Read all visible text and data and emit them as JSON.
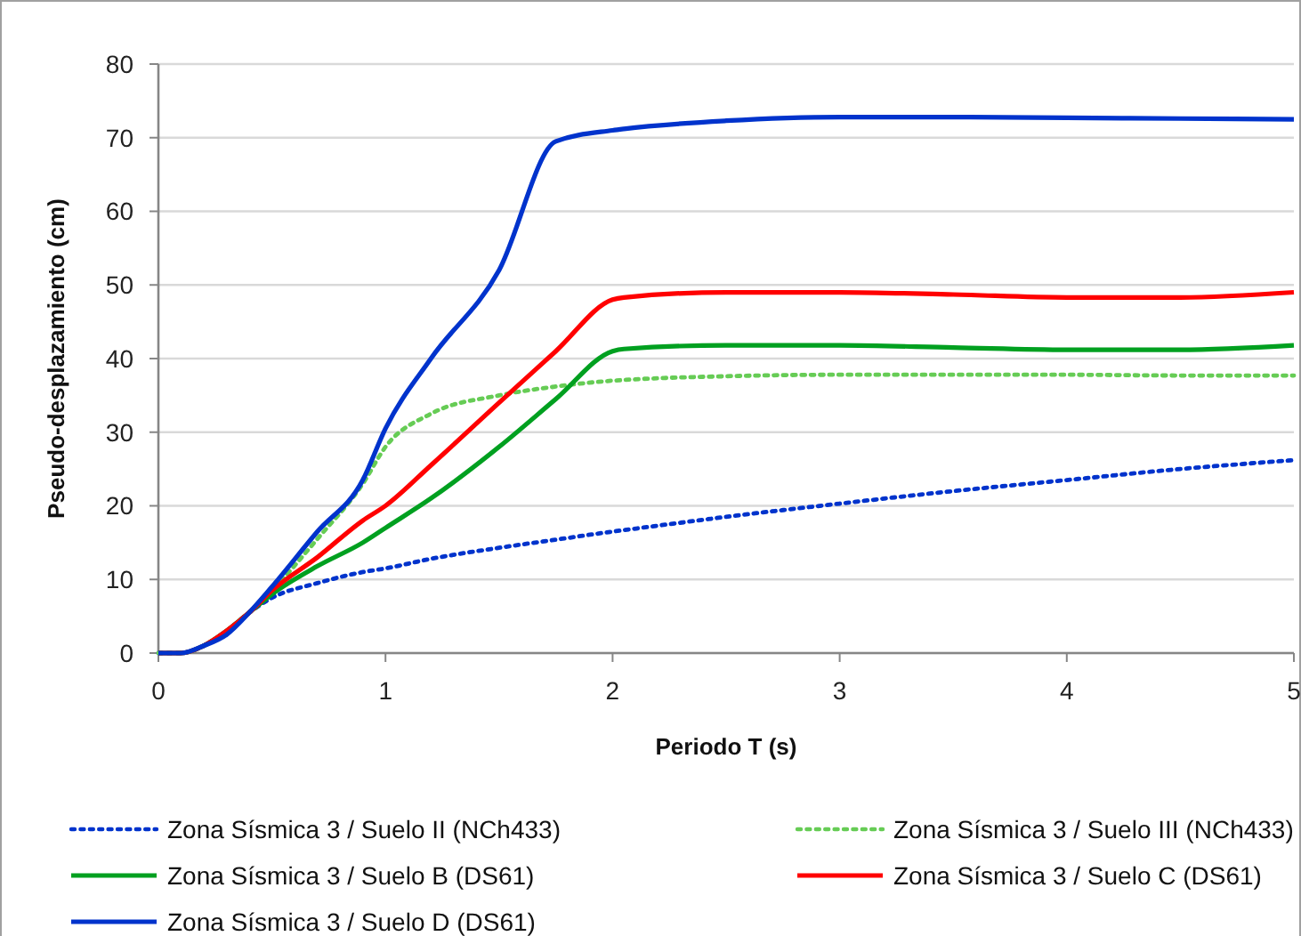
{
  "chart_data": {
    "type": "line",
    "xlabel": "Periodo T (s)",
    "ylabel": "Pseudo-desplazamiento (cm)",
    "xlim": [
      0,
      5
    ],
    "ylim": [
      0,
      80
    ],
    "xticks": [
      0,
      1,
      2,
      3,
      4,
      5
    ],
    "yticks": [
      0,
      10,
      20,
      30,
      40,
      50,
      60,
      70,
      80
    ],
    "grid": "y",
    "legend": "bottom",
    "marker": "none",
    "x": [
      0,
      0.1,
      0.2,
      0.3,
      0.4,
      0.5,
      0.7,
      0.9,
      1,
      1.2,
      1.5,
      1.75,
      2,
      2.05,
      2.5,
      3,
      3.5,
      4,
      4.5,
      5
    ],
    "series": [
      {
        "name": "Zona Sísmica 3 / Suelo II (NCh433)",
        "color": "#0033cc",
        "line_style": "dotted",
        "values": [
          0,
          0,
          1,
          3,
          5.5,
          7.5,
          9.5,
          11,
          11.5,
          12.8,
          14.3,
          15.4,
          16.5,
          16.7,
          18.5,
          20.3,
          22,
          23.5,
          25,
          26.2
        ]
      },
      {
        "name": "Zona Sísmica 3 / Suelo III (NCh433)",
        "color": "#66cc55",
        "line_style": "dotted",
        "values": [
          0,
          0,
          1,
          3,
          5.5,
          8.5,
          15.5,
          23,
          28,
          32.5,
          35,
          36.2,
          37,
          37.1,
          37.6,
          37.8,
          37.8,
          37.8,
          37.7,
          37.7
        ]
      },
      {
        "name": "Zona Sísmica 3 / Suelo B (DS61)",
        "color": "#00a020",
        "line_style": "solid",
        "values": [
          0,
          0,
          1,
          3,
          5.5,
          8,
          11.8,
          15,
          17,
          21,
          28,
          34.5,
          41,
          41.3,
          41.8,
          41.8,
          41.5,
          41.2,
          41.2,
          41.8
        ]
      },
      {
        "name": "Zona Sísmica 3 / Suelo C (DS61)",
        "color": "#ff0000",
        "line_style": "solid",
        "values": [
          0,
          0,
          1,
          3,
          5.5,
          8.5,
          13,
          18,
          20,
          25.5,
          34,
          41,
          48,
          48.3,
          49,
          49,
          48.7,
          48.3,
          48.3,
          49
        ]
      },
      {
        "name": "Zona Sísmica 3 / Suelo D (DS61)",
        "color": "#0033cc",
        "line_style": "solid",
        "values": [
          0,
          0,
          1,
          2.5,
          5.5,
          9,
          16.5,
          23.5,
          30.5,
          40,
          52,
          69.5,
          71,
          71.2,
          72.3,
          72.8,
          72.8,
          72.7,
          72.6,
          72.5
        ]
      }
    ]
  }
}
